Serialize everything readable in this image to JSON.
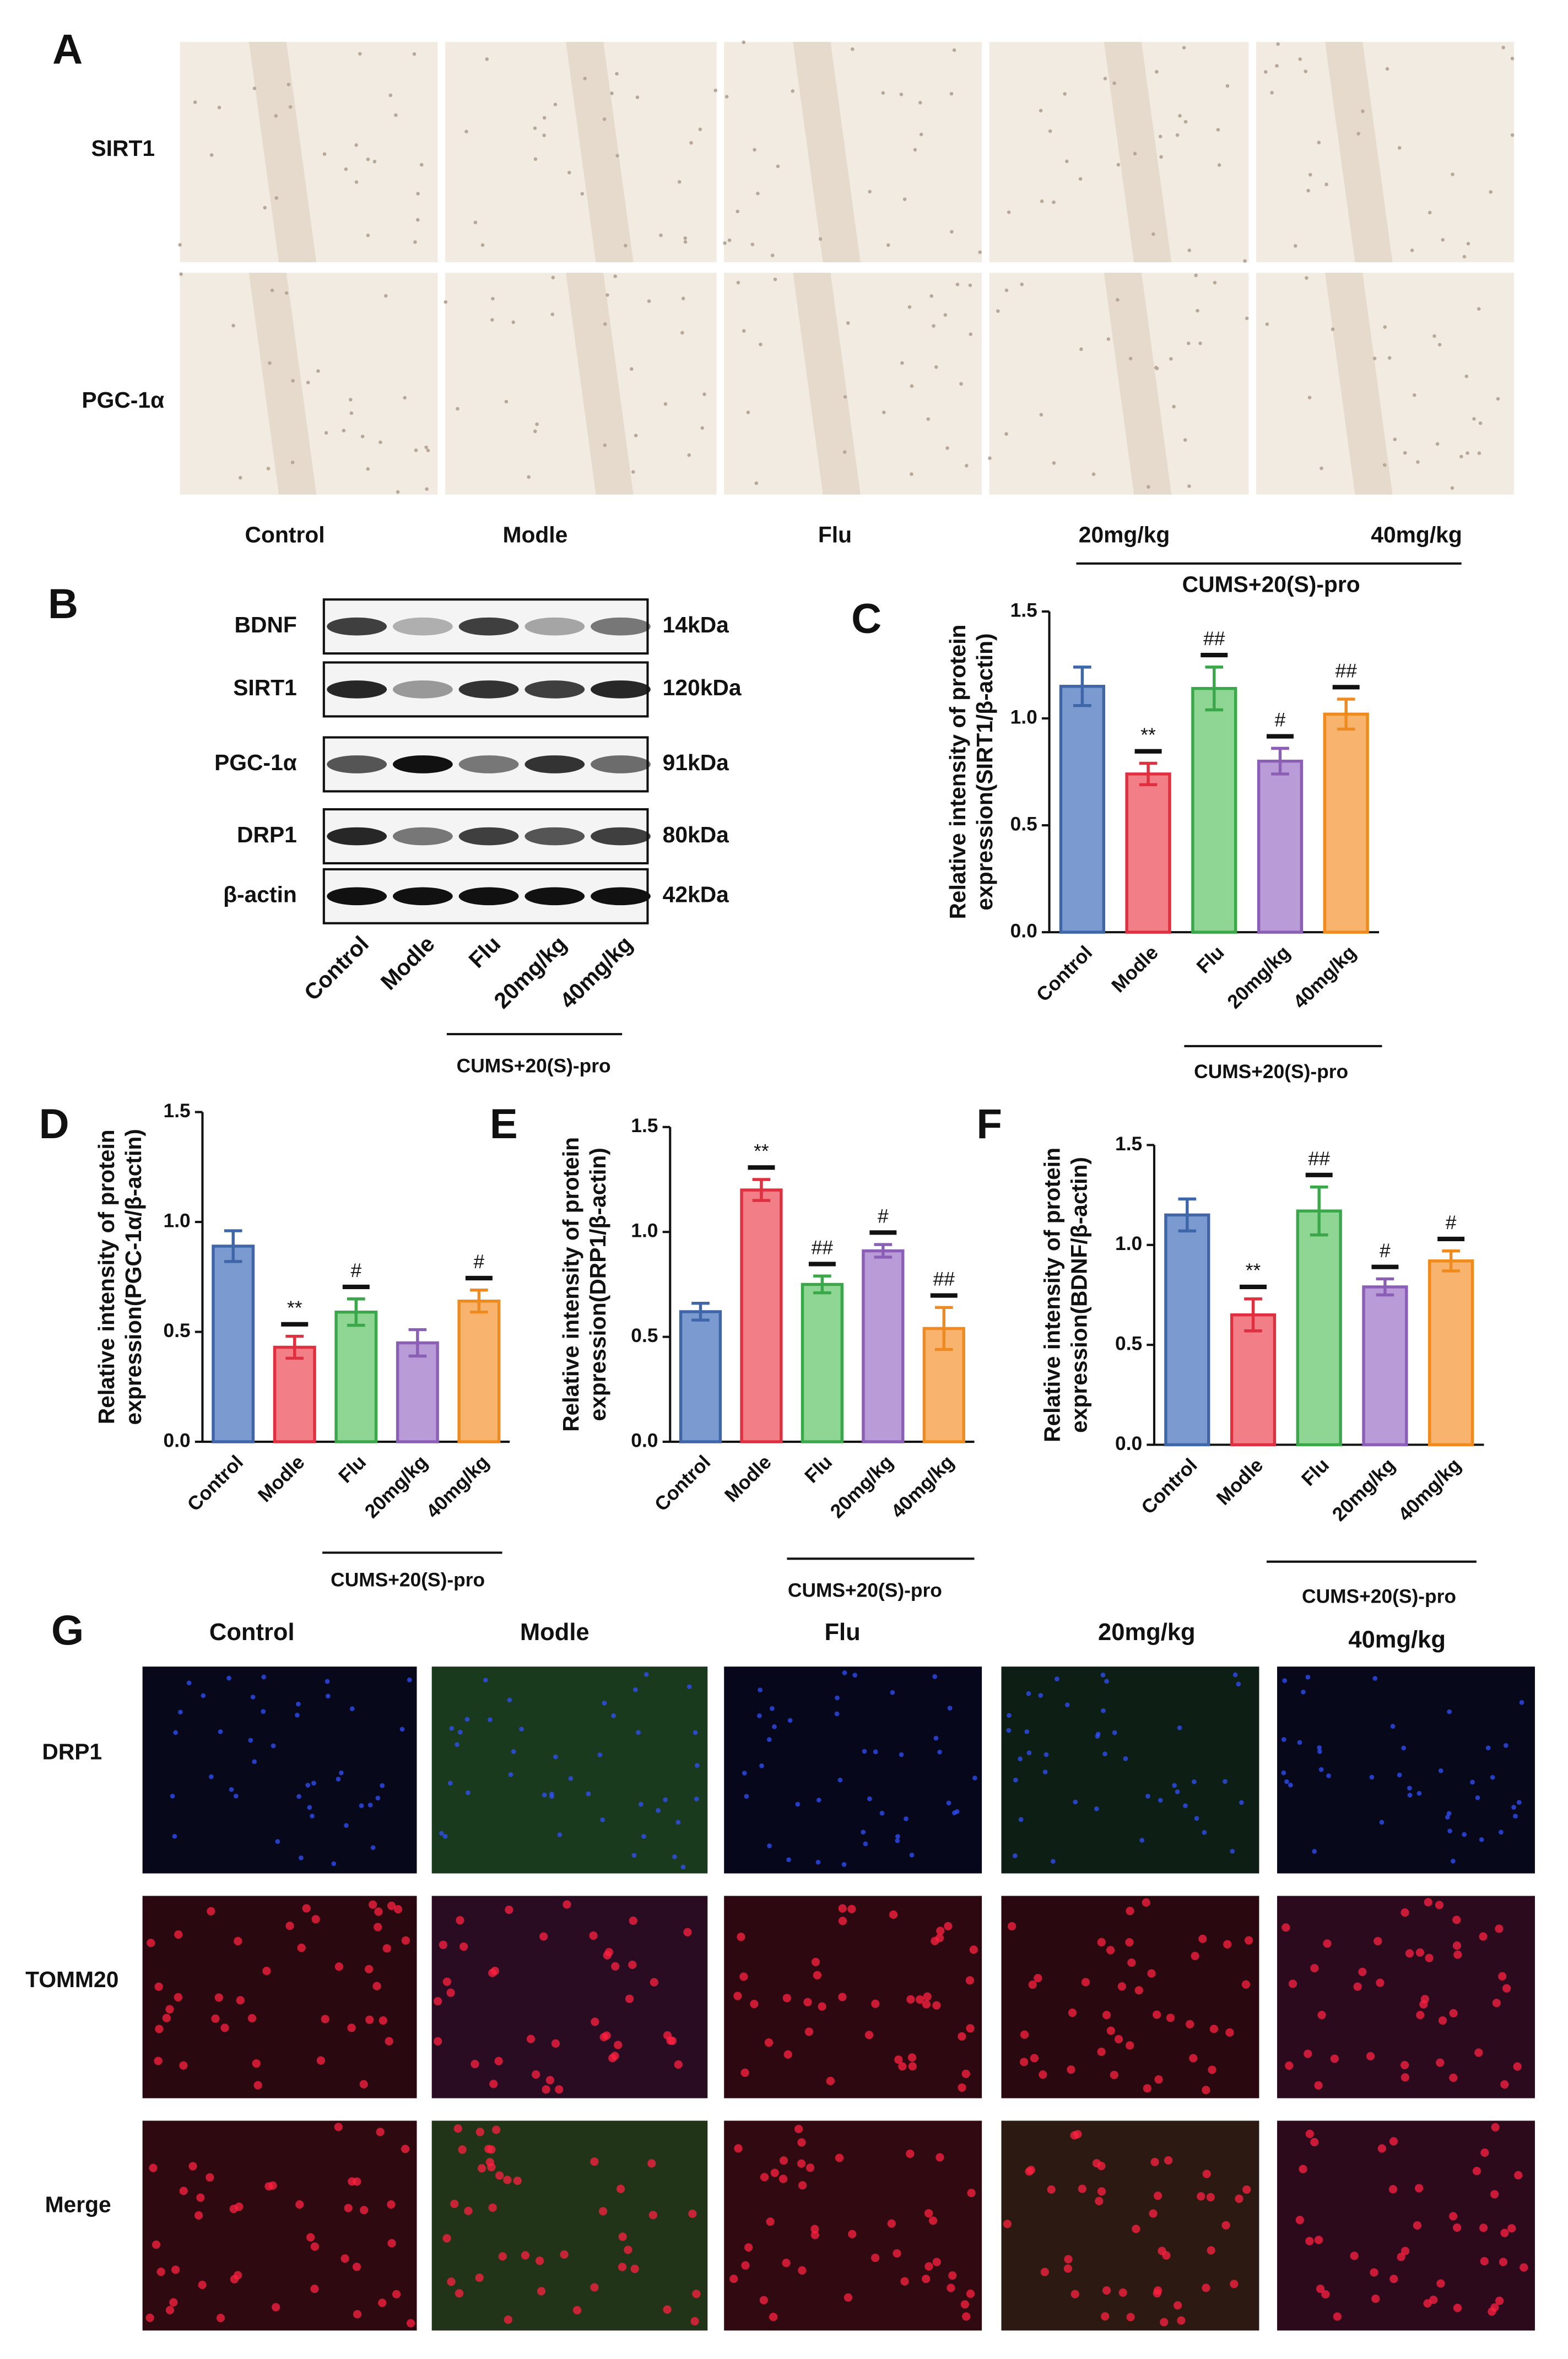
{
  "panel_a": {
    "letter": "A",
    "rows": [
      "SIRT1",
      "PGC-1α"
    ],
    "columns": [
      "Control",
      "Modle",
      "Flu",
      "20mg/kg",
      "40mg/kg"
    ],
    "group": "CUMS+20(S)-pro"
  },
  "panel_b": {
    "letter": "B",
    "proteins": [
      "BDNF",
      "SIRT1",
      "PGC-1α",
      "DRP1",
      "β-actin"
    ],
    "sizes": [
      "14kDa",
      "120kDa",
      "91kDa",
      "80kDa",
      "42kDa"
    ],
    "lanes": [
      "Control",
      "Modle",
      "Flu",
      "20mg/kg",
      "40mg/kg"
    ],
    "group": "CUMS+20(S)-pro"
  },
  "chart_data": [
    {
      "type": "bar",
      "panel": "C",
      "ylabel": [
        "Relative intensity of protein",
        "expression(SIRT1/β-actin)"
      ],
      "categories": [
        "Control",
        "Modle",
        "Flu",
        "20mg/kg",
        "40mg/kg"
      ],
      "values": [
        1.15,
        0.74,
        1.14,
        0.8,
        1.02
      ],
      "errors": [
        0.09,
        0.05,
        0.1,
        0.06,
        0.07
      ],
      "annotations": [
        null,
        "**",
        "##",
        "#",
        "##"
      ],
      "colors": [
        "#7b9bd0",
        "#f27e87",
        "#8fd694",
        "#b99bd8",
        "#f8b46e"
      ],
      "edge_colors": [
        "#3f66a8",
        "#e03040",
        "#3aa84a",
        "#8a5fb5",
        "#f08a1c"
      ],
      "ylim": [
        0,
        1.5
      ],
      "yticks": [
        {
          "value": 0,
          "label": "0.0"
        },
        0.5,
        {
          "value": 1,
          "label": "1.0"
        },
        1.5
      ],
      "group_label": "CUMS+20(S)-pro"
    },
    {
      "type": "bar",
      "panel": "D",
      "ylabel": [
        "Relative intensity of protein",
        "expression(PGC-1α/β-actin)"
      ],
      "categories": [
        "Control",
        "Modle",
        "Flu",
        "20mg/kg",
        "40mg/kg"
      ],
      "values": [
        0.89,
        0.43,
        0.59,
        0.45,
        0.64
      ],
      "errors": [
        0.07,
        0.05,
        0.06,
        0.06,
        0.05
      ],
      "annotations": [
        null,
        "**",
        "#",
        null,
        "#"
      ],
      "colors": [
        "#7b9bd0",
        "#f27e87",
        "#8fd694",
        "#b99bd8",
        "#f8b46e"
      ],
      "edge_colors": [
        "#3f66a8",
        "#e03040",
        "#3aa84a",
        "#8a5fb5",
        "#f08a1c"
      ],
      "ylim": [
        0,
        1.5
      ],
      "yticks": [
        {
          "value": 0,
          "label": "0.0"
        },
        0.5,
        {
          "value": 1,
          "label": "1.0"
        },
        1.5
      ],
      "group_label": "CUMS+20(S)-pro"
    },
    {
      "type": "bar",
      "panel": "E",
      "ylabel": [
        "Relative intensity of protein",
        "expression(DRP1/β-actin)"
      ],
      "categories": [
        "Control",
        "Modle",
        "Flu",
        "20mg/kg",
        "40mg/kg"
      ],
      "values": [
        0.62,
        1.2,
        0.75,
        0.91,
        0.54
      ],
      "errors": [
        0.04,
        0.05,
        0.04,
        0.03,
        0.1
      ],
      "annotations": [
        null,
        "**",
        "##",
        "#",
        "##"
      ],
      "colors": [
        "#7b9bd0",
        "#f27e87",
        "#8fd694",
        "#b99bd8",
        "#f8b46e"
      ],
      "edge_colors": [
        "#3f66a8",
        "#e03040",
        "#3aa84a",
        "#8a5fb5",
        "#f08a1c"
      ],
      "ylim": [
        0,
        1.5
      ],
      "yticks": [
        {
          "value": 0,
          "label": "0.0"
        },
        0.5,
        {
          "value": 1,
          "label": "1.0"
        },
        1.5
      ],
      "group_label": "CUMS+20(S)-pro"
    },
    {
      "type": "bar",
      "panel": "F",
      "ylabel": [
        "Relative intensity of protein",
        "expression(BDNF/β-actin)"
      ],
      "categories": [
        "Control",
        "Modle",
        "Flu",
        "20mg/kg",
        "40mg/kg"
      ],
      "values": [
        1.15,
        0.65,
        1.17,
        0.79,
        0.92
      ],
      "errors": [
        0.08,
        0.08,
        0.12,
        0.04,
        0.05
      ],
      "annotations": [
        null,
        "**",
        "##",
        "#",
        "#"
      ],
      "colors": [
        "#7b9bd0",
        "#f27e87",
        "#8fd694",
        "#b99bd8",
        "#f8b46e"
      ],
      "edge_colors": [
        "#3f66a8",
        "#e03040",
        "#3aa84a",
        "#8a5fb5",
        "#f08a1c"
      ],
      "ylim": [
        0,
        1.5
      ],
      "yticks": [
        {
          "value": 0,
          "label": "0.0"
        },
        0.5,
        {
          "value": 1,
          "label": "1.0"
        },
        1.5
      ],
      "group_label": "CUMS+20(S)-pro"
    }
  ],
  "panel_g": {
    "letter": "G",
    "columns": [
      "Control",
      "Modle",
      "Flu",
      "20mg/kg",
      "40mg/kg"
    ],
    "rows": [
      "DRP1",
      "TOMM20",
      "Merge"
    ]
  }
}
